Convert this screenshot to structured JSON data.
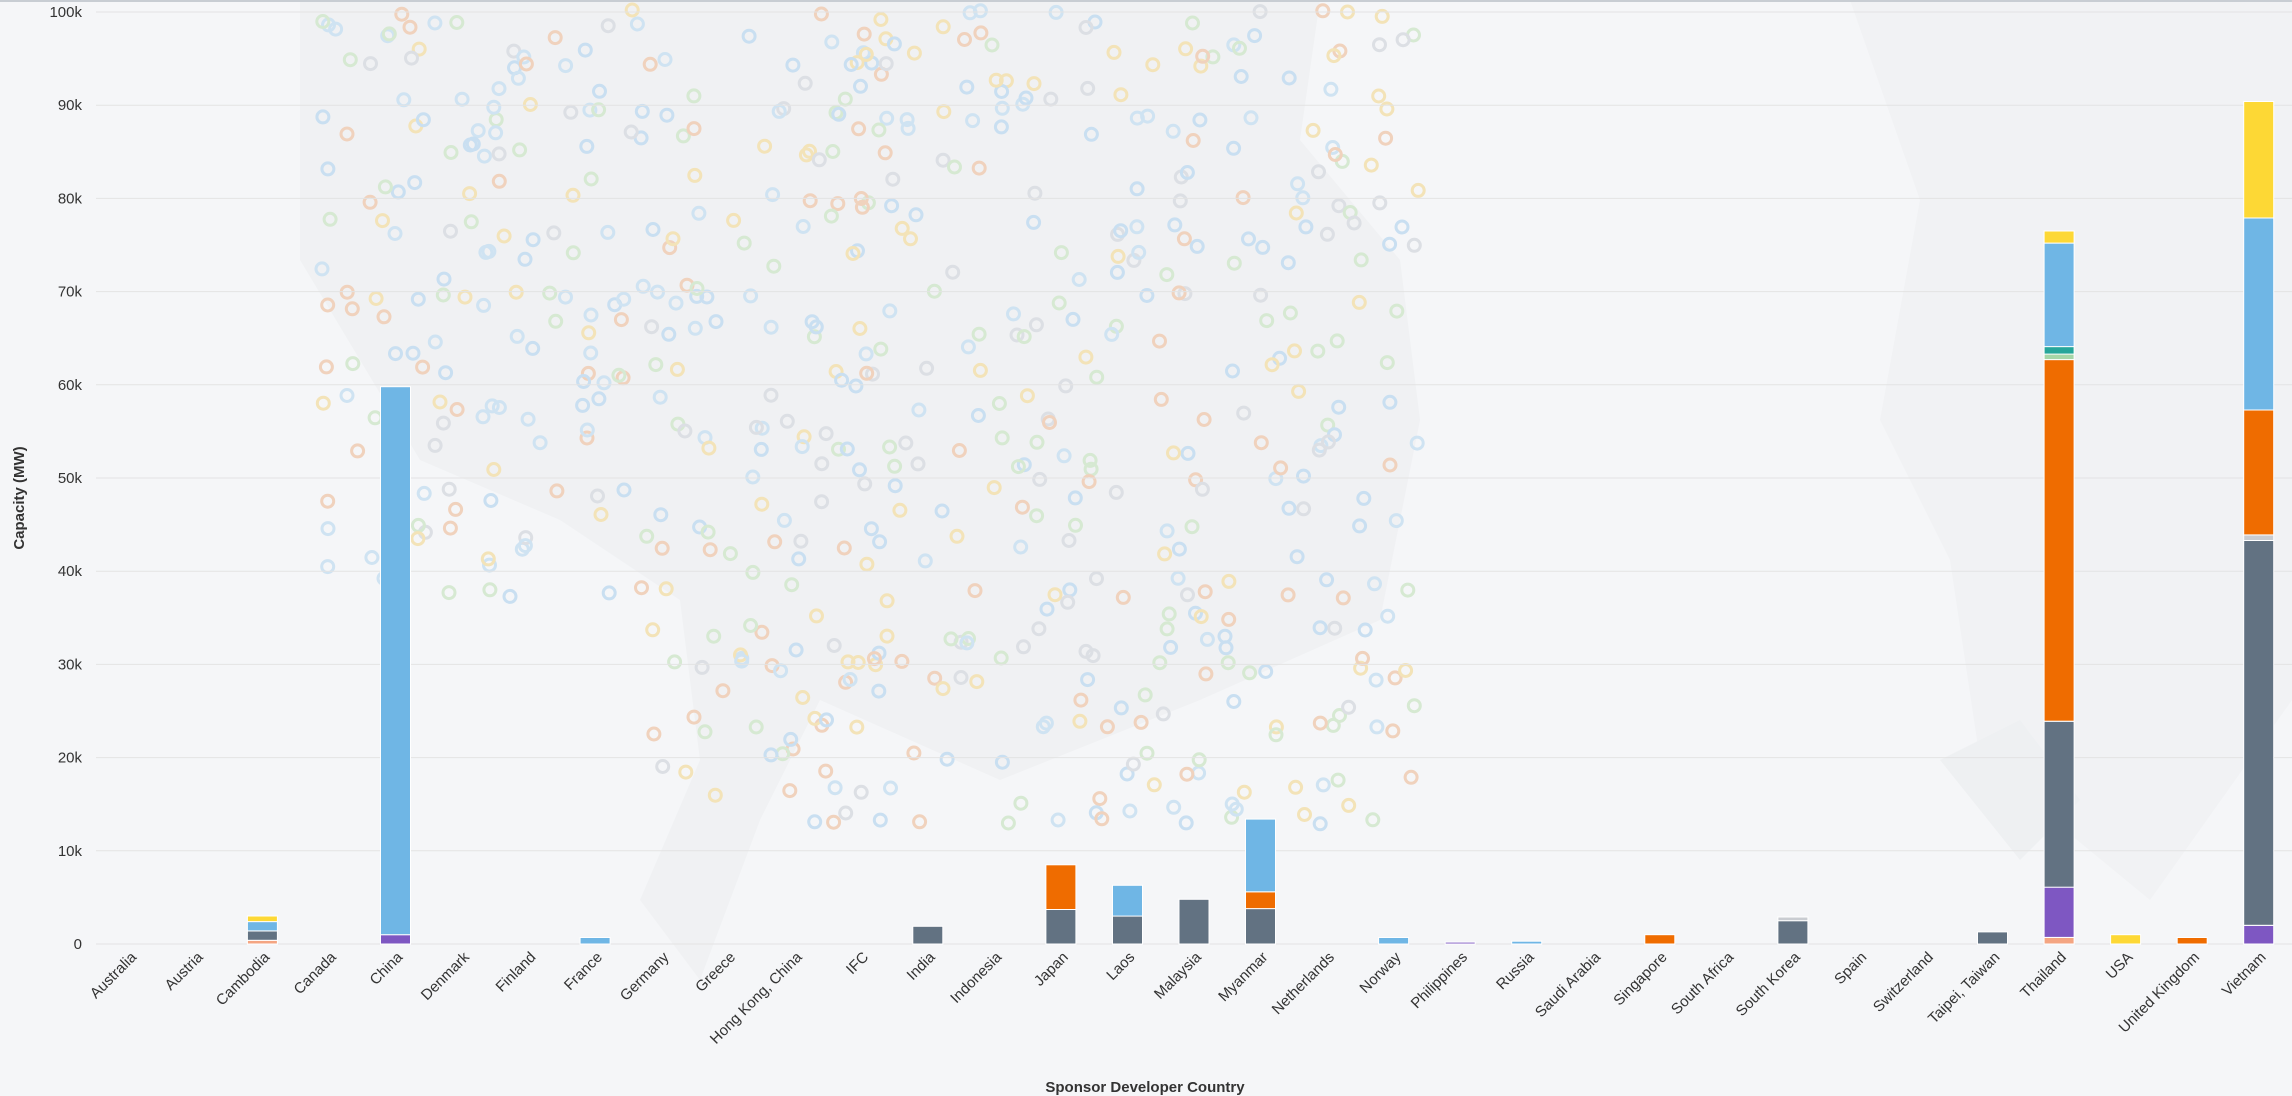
{
  "chart_data": {
    "type": "bar",
    "stacked": true,
    "xlabel": "Sponsor Developer Country",
    "ylabel": "Capacity (MW)",
    "ylim": [
      0,
      100000
    ],
    "yticks": [
      "0",
      "10k",
      "20k",
      "30k",
      "40k",
      "50k",
      "60k",
      "70k",
      "80k",
      "90k",
      "100k"
    ],
    "grid": true,
    "categories": [
      "Australia",
      "Austria",
      "Cambodia",
      "Canada",
      "China",
      "Denmark",
      "Finland",
      "France",
      "Germany",
      "Greece",
      "Hong Kong, China",
      "IFC",
      "India",
      "Indonesia",
      "Japan",
      "Laos",
      "Malaysia",
      "Myanmar",
      "Netherlands",
      "Norway",
      "Philippines",
      "Russia",
      "Saudi Arabia",
      "Singapore",
      "South Africa",
      "South Korea",
      "Spain",
      "Switzerland",
      "Taipei, Taiwan",
      "Thailand",
      "USA",
      "United Kingdom",
      "Vietnam"
    ],
    "series": [
      {
        "color": "#f4a582",
        "values": [
          0,
          0,
          400,
          0,
          0,
          0,
          0,
          0,
          0,
          0,
          0,
          0,
          0,
          0,
          0,
          0,
          0,
          0,
          0,
          0,
          0,
          0,
          0,
          0,
          0,
          0,
          0,
          0,
          0,
          700,
          0,
          0,
          0
        ]
      },
      {
        "color": "#7e57c2",
        "values": [
          0,
          0,
          0,
          0,
          1000,
          0,
          0,
          0,
          0,
          0,
          0,
          0,
          0,
          0,
          0,
          0,
          0,
          0,
          0,
          0,
          200,
          0,
          0,
          0,
          0,
          0,
          0,
          0,
          0,
          5400,
          0,
          0,
          2000
        ]
      },
      {
        "color": "#627282",
        "values": [
          0,
          0,
          1000,
          0,
          0,
          0,
          0,
          0,
          0,
          0,
          0,
          0,
          1900,
          0,
          3700,
          3000,
          4800,
          3800,
          0,
          0,
          0,
          0,
          0,
          0,
          0,
          2500,
          0,
          0,
          1300,
          17800,
          0,
          0,
          41300
        ]
      },
      {
        "color": "#c9ccd1",
        "values": [
          0,
          0,
          0,
          0,
          0,
          0,
          0,
          0,
          0,
          0,
          0,
          0,
          0,
          0,
          0,
          0,
          0,
          0,
          0,
          0,
          0,
          0,
          0,
          0,
          0,
          400,
          0,
          0,
          0,
          0,
          0,
          0,
          600
        ]
      },
      {
        "color": "#ef6c00",
        "values": [
          0,
          0,
          0,
          0,
          0,
          0,
          0,
          0,
          0,
          0,
          0,
          0,
          0,
          0,
          4800,
          0,
          0,
          1800,
          0,
          0,
          0,
          0,
          0,
          1000,
          0,
          0,
          0,
          0,
          0,
          38800,
          0,
          700,
          13400
        ]
      },
      {
        "color": "#a5d6a7",
        "values": [
          0,
          0,
          0,
          0,
          0,
          0,
          0,
          0,
          0,
          0,
          0,
          0,
          0,
          0,
          0,
          0,
          0,
          0,
          0,
          0,
          0,
          0,
          0,
          0,
          0,
          0,
          0,
          0,
          0,
          600,
          0,
          0,
          0
        ]
      },
      {
        "color": "#26a69a",
        "values": [
          0,
          0,
          0,
          0,
          0,
          0,
          0,
          0,
          0,
          0,
          0,
          0,
          0,
          0,
          0,
          0,
          0,
          0,
          0,
          0,
          0,
          0,
          0,
          0,
          0,
          0,
          0,
          0,
          0,
          800,
          0,
          0,
          0
        ]
      },
      {
        "color": "#6fb6e5",
        "values": [
          0,
          0,
          1000,
          0,
          58800,
          0,
          0,
          700,
          0,
          0,
          0,
          0,
          0,
          0,
          0,
          3300,
          0,
          7800,
          0,
          700,
          0,
          300,
          0,
          0,
          0,
          0,
          0,
          0,
          0,
          11100,
          0,
          0,
          20600
        ]
      },
      {
        "color": "#fdd835",
        "values": [
          0,
          0,
          600,
          0,
          0,
          0,
          0,
          0,
          0,
          0,
          0,
          0,
          0,
          0,
          0,
          0,
          0,
          0,
          0,
          0,
          0,
          0,
          0,
          0,
          0,
          0,
          0,
          0,
          0,
          1300,
          1000,
          0,
          12500
        ]
      }
    ]
  }
}
